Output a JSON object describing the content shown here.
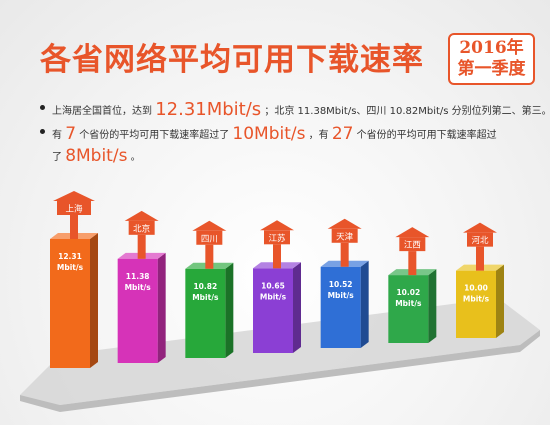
{
  "title": "各省网络平均可用下载速率",
  "badge": {
    "line1": "2016年",
    "line2": "第一季度"
  },
  "bullets": {
    "line1": {
      "prefix": "上海居全国首位，达到",
      "value": "12.31Mbit/s",
      "suffix": "；北京 11.38Mbit/s、四川 10.82Mbit/s 分别位列第二、第三。"
    },
    "line2": {
      "p1": "有",
      "n1": "7",
      "p2": "个省份的平均可用下载速率超过了",
      "v1": "10Mbit/s",
      "p3": "，有",
      "n2": "27",
      "p4": "个省份的平均可用下载速率超过"
    },
    "line3": {
      "p1": "了",
      "v1": "8Mbit/s",
      "p2": "。"
    }
  },
  "chart_data": {
    "type": "bar",
    "categories": [
      "上海",
      "北京",
      "四川",
      "江苏",
      "天津",
      "江西",
      "河北"
    ],
    "values": [
      12.31,
      11.38,
      10.82,
      10.65,
      10.52,
      10.02,
      10.0
    ],
    "value_labels": [
      "12.31\nMbit/s",
      "11.38\nMbit/s",
      "10.82\nMbit/s",
      "10.65\nMbit/s",
      "10.52\nMbit/s",
      "10.02\nMbit/s",
      "10.00\nMbit/s"
    ],
    "colors": [
      "#f26a1b",
      "#d633b8",
      "#27a83a",
      "#8b3fd4",
      "#2f6fd6",
      "#2fa84a",
      "#e8c01c"
    ],
    "arrow_color": "#e8552a",
    "title": "",
    "xlabel": "",
    "ylabel": ""
  }
}
